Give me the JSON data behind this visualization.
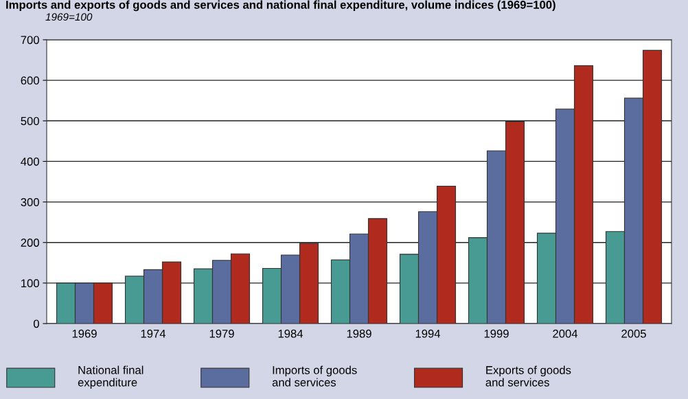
{
  "chart_data": {
    "type": "bar",
    "title": "Imports and exports of goods and services and national final expenditure, volume indices (1969=100)",
    "subtitle": "1969=100",
    "categories": [
      "1969",
      "1974",
      "1979",
      "1984",
      "1989",
      "1994",
      "1999",
      "2004",
      "2005"
    ],
    "series": [
      {
        "name": "National final\nexpenditure",
        "color": "#479b93",
        "values": [
          100,
          117,
          135,
          136,
          157,
          171,
          212,
          223,
          227
        ]
      },
      {
        "name": "Imports of goods\nand services",
        "color": "#5b6d9f",
        "values": [
          100,
          133,
          156,
          169,
          221,
          276,
          426,
          529,
          556
        ]
      },
      {
        "name": "Exports of goods\nand services",
        "color": "#b02a1d",
        "values": [
          100,
          152,
          172,
          198,
          259,
          339,
          498,
          636,
          674
        ]
      }
    ],
    "ylim": [
      0,
      700
    ],
    "yticks": [
      0,
      100,
      200,
      300,
      400,
      500,
      600,
      700
    ],
    "grid": "y",
    "legend": "bottom"
  }
}
